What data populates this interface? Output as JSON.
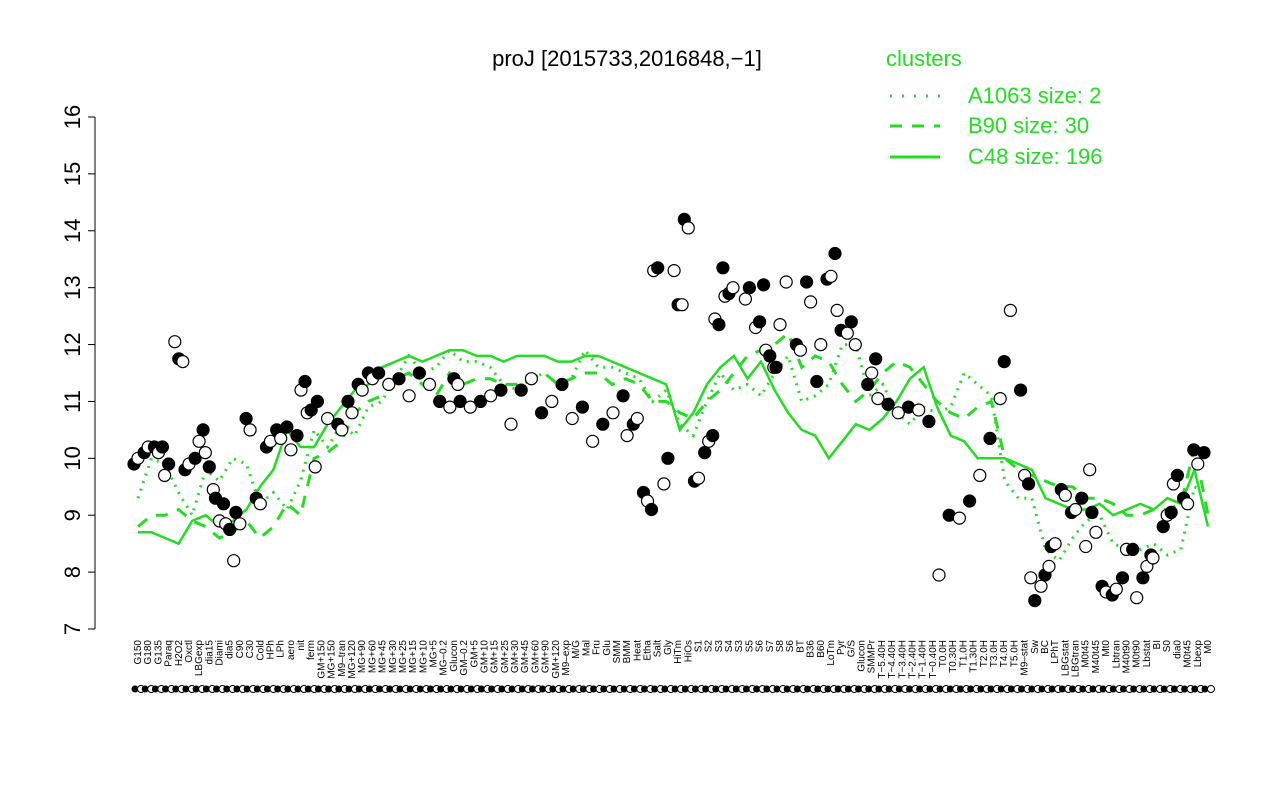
{
  "chart_data": {
    "type": "line",
    "title": "proJ [2015733,2016848,−1]",
    "xlabel": "",
    "ylabel": "",
    "ylim": [
      7,
      16
    ],
    "yticks": [
      7,
      8,
      9,
      10,
      11,
      12,
      13,
      14,
      15,
      16
    ],
    "grid": false,
    "legend_position": "top-right",
    "legend_title": "clusters",
    "line_color": "#22dd22",
    "series": [
      {
        "name": "A1063 size: 2",
        "style": "dotted",
        "values": [
          9.3,
          10.0,
          9.9,
          9.4,
          9.0,
          9.8,
          9.6,
          10.0,
          9.9,
          9.2,
          9.4,
          9.1,
          9.6,
          10.5,
          10.2,
          10.6,
          10.4,
          10.9,
          11.0,
          11.4,
          11.8,
          11.5,
          11.6,
          11.9,
          11.7,
          11.7,
          11.6,
          11.3,
          11.2,
          11.4,
          11.5,
          11.3,
          11.4,
          11.9,
          11.6,
          11.6,
          11.5,
          11.4,
          11.0,
          11.2,
          10.6,
          10.4,
          11.0,
          11.5,
          11.2,
          11.3,
          11.1,
          11.5,
          11.8,
          11.0,
          11.1,
          11.3,
          12.0,
          12.0,
          11.1,
          11.3,
          10.8,
          10.6,
          10.9,
          10.8,
          10.9,
          11.5,
          11.3,
          11.1,
          9.6,
          9.3,
          9.3,
          8.4,
          8.2,
          8.6,
          8.9,
          9.0,
          8.5,
          8.4,
          8.4,
          8.5,
          8.3,
          8.4,
          9.5,
          9.4
        ]
      },
      {
        "name": "B90 size: 30",
        "style": "dashed",
        "values": [
          8.8,
          9.0,
          9.0,
          9.1,
          8.9,
          8.8,
          8.6,
          8.7,
          8.9,
          8.6,
          8.8,
          9.2,
          9.0,
          10.0,
          10.1,
          10.3,
          10.8,
          11.0,
          11.1,
          11.4,
          11.5,
          11.3,
          11.1,
          11.5,
          11.3,
          11.4,
          11.4,
          11.3,
          11.3,
          11.4,
          11.5,
          11.3,
          11.4,
          11.5,
          11.5,
          11.3,
          11.4,
          11.3,
          11.0,
          11.0,
          10.8,
          10.7,
          11.0,
          11.2,
          11.5,
          11.8,
          11.9,
          12.0,
          12.2,
          11.6,
          11.8,
          11.7,
          11.3,
          11.0,
          11.2,
          11.5,
          11.7,
          11.6,
          11.3,
          11.0,
          10.8,
          10.7,
          10.9,
          11.0,
          10.0,
          9.8,
          9.7,
          9.6,
          9.5,
          9.5,
          9.3,
          9.3,
          9.2,
          9.0,
          9.0,
          9.1,
          9.1,
          9.2,
          10.2,
          9.0
        ]
      },
      {
        "name": "C48 size: 196",
        "style": "solid",
        "values": [
          8.7,
          8.7,
          8.6,
          8.5,
          8.9,
          9.0,
          8.8,
          8.9,
          9.1,
          9.5,
          9.8,
          10.5,
          10.2,
          10.2,
          10.6,
          10.9,
          11.2,
          11.3,
          11.6,
          11.7,
          11.8,
          11.7,
          11.8,
          11.9,
          11.9,
          11.8,
          11.8,
          11.7,
          11.8,
          11.8,
          11.8,
          11.7,
          11.7,
          11.8,
          11.8,
          11.7,
          11.6,
          11.5,
          11.4,
          11.3,
          10.5,
          10.8,
          11.3,
          11.6,
          11.8,
          11.4,
          11.7,
          11.2,
          10.8,
          10.5,
          10.4,
          10.0,
          10.3,
          10.6,
          10.5,
          10.7,
          11.0,
          11.4,
          11.6,
          10.9,
          10.4,
          10.3,
          10.0,
          10.0,
          10.0,
          9.9,
          9.8,
          9.3,
          9.2,
          9.1,
          9.1,
          9.2,
          9.0,
          9.1,
          9.2,
          9.1,
          9.3,
          9.2,
          9.8,
          8.8
        ]
      }
    ],
    "x_labels": [
      "G150",
      "G180",
      "G135",
      "Paraq",
      "H2O2",
      "Oxctl",
      "LBGexp",
      "dia15",
      "Diami",
      "dia5",
      "C90",
      "C30",
      "Cold",
      "HPh",
      "LPh",
      "aero",
      "nit",
      "ferm",
      "GM+150",
      "MG+150",
      "M9–tran",
      "MG+120",
      "MG+90",
      "MG+60",
      "MG+45",
      "MG+30",
      "MG+25",
      "MG+15",
      "MG+10",
      "MG+5",
      "MG–0.2",
      "Glucon",
      "GM–0.2",
      "GM+5",
      "GM+10",
      "GM+15",
      "GM+25",
      "GM+30",
      "GM+45",
      "GM+60",
      "GM+90",
      "GM+120",
      "M9–exp",
      "M/G",
      "Mal",
      "Fru",
      "Glu",
      "SMM",
      "BMM",
      "Heat",
      "Etha",
      "Salt",
      "Gly",
      "HiTm",
      "HiOs",
      "S1",
      "S2",
      "S3",
      "S4",
      "S3",
      "S5",
      "S6",
      "S7",
      "S8",
      "S6",
      "BT",
      "B36",
      "B60",
      "LoTm",
      "Pyr",
      "G/S",
      "Glucon",
      "SMMPr",
      "T−5.40H",
      "T−4.40H",
      "T−3.40H",
      "T−2.40H",
      "T−1.40H",
      "T−0.40H",
      "T0.0H",
      "T0.30H",
      "T1.0H",
      "T1.30H",
      "T2.0H",
      "T3.0H",
      "T4.0H",
      "T5.0H",
      "M9–stat",
      "Sw",
      "BC",
      "LPhT",
      "LBGstat",
      "LBGtran",
      "M0t45",
      "M40t45",
      "Mt0",
      "Lbtran",
      "M40t90",
      "M0t90",
      "Lbstat",
      "BI",
      "S0",
      "dia0",
      "M0t45",
      "Lbexp",
      "M0"
    ],
    "points": [
      {
        "x": "G150",
        "y": 9.9
      },
      {
        "x": "G150",
        "y": 10.0
      },
      {
        "x": "G180",
        "y": 10.1
      },
      {
        "x": "G180",
        "y": 10.2
      },
      {
        "x": "G135",
        "y": 10.2
      },
      {
        "x": "G135",
        "y": 10.1
      },
      {
        "x": "G135",
        "y": 10.2
      },
      {
        "x": "Paraq",
        "y": 9.7
      },
      {
        "x": "Paraq",
        "y": 9.9
      },
      {
        "x": "H2O2",
        "y": 12.05
      },
      {
        "x": "H2O2",
        "y": 11.75
      },
      {
        "x": "H2O2",
        "y": 11.7
      },
      {
        "x": "Oxctl",
        "y": 9.8
      },
      {
        "x": "Oxctl",
        "y": 9.9
      },
      {
        "x": "LBGexp",
        "y": 10.0
      },
      {
        "x": "LBGexp",
        "y": 10.3
      },
      {
        "x": "LBGexp",
        "y": 10.5
      },
      {
        "x": "dia15",
        "y": 10.1
      },
      {
        "x": "dia15",
        "y": 9.85
      },
      {
        "x": "dia15",
        "y": 9.45
      },
      {
        "x": "Diami",
        "y": 9.3
      },
      {
        "x": "Diami",
        "y": 8.9
      },
      {
        "x": "Diami",
        "y": 9.2
      },
      {
        "x": "dia5",
        "y": 8.85
      },
      {
        "x": "dia5",
        "y": 8.75
      },
      {
        "x": "dia5",
        "y": 8.2
      },
      {
        "x": "C90",
        "y": 9.05
      },
      {
        "x": "C90",
        "y": 8.85
      },
      {
        "x": "C30",
        "y": 10.7
      },
      {
        "x": "C30",
        "y": 10.5
      },
      {
        "x": "Cold",
        "y": 9.3
      },
      {
        "x": "Cold",
        "y": 9.2
      },
      {
        "x": "HPh",
        "y": 10.2
      },
      {
        "x": "HPh",
        "y": 10.3
      },
      {
        "x": "LPh",
        "y": 10.5
      },
      {
        "x": "LPh",
        "y": 10.35
      },
      {
        "x": "aero",
        "y": 10.55
      },
      {
        "x": "aero",
        "y": 10.15
      },
      {
        "x": "nit",
        "y": 10.4
      },
      {
        "x": "nit",
        "y": 11.2
      },
      {
        "x": "nit",
        "y": 11.35
      },
      {
        "x": "ferm",
        "y": 10.8
      },
      {
        "x": "ferm",
        "y": 10.85
      },
      {
        "x": "ferm",
        "y": 9.85
      },
      {
        "x": "GM+150",
        "y": 11.0
      },
      {
        "x": "MG+150",
        "y": 10.7
      },
      {
        "x": "M9–tran",
        "y": 10.6
      },
      {
        "x": "M9–tran",
        "y": 10.5
      },
      {
        "x": "MG+120",
        "y": 11.0
      },
      {
        "x": "MG+120",
        "y": 10.8
      },
      {
        "x": "MG+90",
        "y": 11.3
      },
      {
        "x": "MG+90",
        "y": 11.2
      },
      {
        "x": "MG+60",
        "y": 11.5
      },
      {
        "x": "MG+60",
        "y": 11.4
      },
      {
        "x": "MG+45",
        "y": 11.5
      },
      {
        "x": "MG+30",
        "y": 11.3
      },
      {
        "x": "MG+25",
        "y": 11.4
      },
      {
        "x": "MG+15",
        "y": 11.1
      },
      {
        "x": "MG+10",
        "y": 11.5
      },
      {
        "x": "MG+5",
        "y": 11.3
      },
      {
        "x": "MG–0.2",
        "y": 11.0
      },
      {
        "x": "Glucon",
        "y": 10.9
      },
      {
        "x": "GM–0.2",
        "y": 11.0
      },
      {
        "x": "GM+5",
        "y": 10.9
      },
      {
        "x": "GM+10",
        "y": 11.0
      },
      {
        "x": "GM+15",
        "y": 11.1
      },
      {
        "x": "GM+25",
        "y": 11.2
      },
      {
        "x": "GM+30",
        "y": 10.6
      },
      {
        "x": "GM+45",
        "y": 11.2
      },
      {
        "x": "GM+60",
        "y": 11.4
      },
      {
        "x": "GM+90",
        "y": 10.8
      },
      {
        "x": "GM+120",
        "y": 11.0
      },
      {
        "x": "M9–exp",
        "y": 11.3
      },
      {
        "x": "M/G",
        "y": 10.7
      },
      {
        "x": "Mal",
        "y": 10.9
      },
      {
        "x": "Fru",
        "y": 10.3
      },
      {
        "x": "Glu",
        "y": 10.6
      },
      {
        "x": "SMM",
        "y": 10.8
      },
      {
        "x": "BMM",
        "y": 11.1
      },
      {
        "x": "BMM",
        "y": 10.4
      },
      {
        "x": "Heat",
        "y": 10.6
      },
      {
        "x": "Heat",
        "y": 10.7
      },
      {
        "x": "Etha",
        "y": 9.4
      },
      {
        "x": "Etha",
        "y": 9.25
      },
      {
        "x": "Etha",
        "y": 9.1
      },
      {
        "x": "Salt",
        "y": 13.3
      },
      {
        "x": "Salt",
        "y": 13.35
      },
      {
        "x": "Gly",
        "y": 9.55
      },
      {
        "x": "Gly",
        "y": 10.0
      },
      {
        "x": "HiTm",
        "y": 13.3
      },
      {
        "x": "HiTm",
        "y": 12.7
      },
      {
        "x": "HiTm",
        "y": 12.7
      },
      {
        "x": "HiOs",
        "y": 14.2
      },
      {
        "x": "HiOs",
        "y": 14.05
      },
      {
        "x": "S1",
        "y": 9.6
      },
      {
        "x": "S1",
        "y": 9.65
      },
      {
        "x": "S2",
        "y": 10.1
      },
      {
        "x": "S2",
        "y": 10.3
      },
      {
        "x": "S2",
        "y": 10.4
      },
      {
        "x": "S3",
        "y": 12.45
      },
      {
        "x": "S3",
        "y": 12.35
      },
      {
        "x": "S4",
        "y": 12.85
      },
      {
        "x": "S4",
        "y": 12.9
      },
      {
        "x": "S4",
        "y": 13.0
      },
      {
        "x": "S3",
        "y": 13.35
      },
      {
        "x": "S5",
        "y": 12.8
      },
      {
        "x": "S5",
        "y": 13.0
      },
      {
        "x": "S6",
        "y": 12.3
      },
      {
        "x": "S6",
        "y": 12.4
      },
      {
        "x": "S7",
        "y": 11.9
      },
      {
        "x": "S7",
        "y": 11.8
      },
      {
        "x": "S7",
        "y": 11.6
      },
      {
        "x": "S8",
        "y": 11.6
      },
      {
        "x": "S8",
        "y": 12.35
      },
      {
        "x": "S6",
        "y": 13.05
      },
      {
        "x": "S6",
        "y": 13.1
      },
      {
        "x": "BT",
        "y": 12.0
      },
      {
        "x": "BT",
        "y": 11.9
      },
      {
        "x": "B36",
        "y": 13.1
      },
      {
        "x": "B36",
        "y": 12.75
      },
      {
        "x": "B60",
        "y": 11.35
      },
      {
        "x": "B60",
        "y": 12.0
      },
      {
        "x": "LoTm",
        "y": 13.15
      },
      {
        "x": "LoTm",
        "y": 13.2
      },
      {
        "x": "LoTm",
        "y": 13.6
      },
      {
        "x": "Pyr",
        "y": 12.6
      },
      {
        "x": "Pyr",
        "y": 12.25
      },
      {
        "x": "G/S",
        "y": 12.2
      },
      {
        "x": "G/S",
        "y": 12.4
      },
      {
        "x": "G/S",
        "y": 12.0
      },
      {
        "x": "Glucon",
        "y": 11.4
      },
      {
        "x": "Glucon",
        "y": 11.3
      },
      {
        "x": "SMMPr",
        "y": 11.3
      },
      {
        "x": "SMMPr",
        "y": 11.5
      },
      {
        "x": "SMMPr",
        "y": 11.75
      },
      {
        "x": "T−5.40H",
        "y": 11.05
      },
      {
        "x": "T−4.40H",
        "y": 10.95
      },
      {
        "x": "T−3.40H",
        "y": 10.8
      },
      {
        "x": "T−2.40H",
        "y": 10.9
      },
      {
        "x": "T−1.40H",
        "y": 10.85
      },
      {
        "x": "T−0.40H",
        "y": 10.65
      },
      {
        "x": "T0.0H",
        "y": 7.95
      },
      {
        "x": "T0.30H",
        "y": 9.0
      },
      {
        "x": "T1.0H",
        "y": 8.95
      },
      {
        "x": "T1.30H",
        "y": 9.25
      },
      {
        "x": "T2.0H",
        "y": 9.7
      },
      {
        "x": "T3.0H",
        "y": 10.35
      },
      {
        "x": "T4.0H",
        "y": 11.05
      },
      {
        "x": "T4.0H",
        "y": 11.7
      },
      {
        "x": "T5.0H",
        "y": 12.6
      },
      {
        "x": "M9–stat",
        "y": 11.2
      },
      {
        "x": "M9–stat",
        "y": 9.7
      },
      {
        "x": "M9–stat",
        "y": 9.55
      },
      {
        "x": "Sw",
        "y": 7.9
      },
      {
        "x": "Sw",
        "y": 7.5
      },
      {
        "x": "BC",
        "y": 7.75
      },
      {
        "x": "BC",
        "y": 7.95
      },
      {
        "x": "BC",
        "y": 8.1
      },
      {
        "x": "LPhT",
        "y": 8.45
      },
      {
        "x": "LPhT",
        "y": 8.5
      },
      {
        "x": "LBGstat",
        "y": 9.45
      },
      {
        "x": "LBGstat",
        "y": 9.35
      },
      {
        "x": "LBGtran",
        "y": 9.05
      },
      {
        "x": "LBGtran",
        "y": 9.1
      },
      {
        "x": "M0t45",
        "y": 9.3
      },
      {
        "x": "M0t45",
        "y": 8.45
      },
      {
        "x": "M40t45",
        "y": 9.05
      },
      {
        "x": "M40t45",
        "y": 8.7
      },
      {
        "x": "Mt0",
        "y": 7.75
      },
      {
        "x": "Mt0",
        "y": 7.65
      },
      {
        "x": "Lbtran",
        "y": 7.6
      },
      {
        "x": "Lbtran",
        "y": 7.7
      },
      {
        "x": "M40t90",
        "y": 7.9
      },
      {
        "x": "M40t90",
        "y": 8.4
      },
      {
        "x": "M0t90",
        "y": 8.4
      },
      {
        "x": "M0t90",
        "y": 7.55
      },
      {
        "x": "Lbstat",
        "y": 7.9
      },
      {
        "x": "Lbstat",
        "y": 8.1
      },
      {
        "x": "Lbstat",
        "y": 8.3
      },
      {
        "x": "BI",
        "y": 8.25
      },
      {
        "x": "S0",
        "y": 8.8
      },
      {
        "x": "S0",
        "y": 9.0
      },
      {
        "x": "S0",
        "y": 9.05
      },
      {
        "x": "dia0",
        "y": 9.55
      },
      {
        "x": "dia0",
        "y": 9.7
      },
      {
        "x": "M0t45",
        "y": 9.8
      },
      {
        "x": "M0t45",
        "y": 9.3
      },
      {
        "x": "M0t45",
        "y": 9.2
      },
      {
        "x": "Lbexp",
        "y": 10.15
      },
      {
        "x": "Lbexp",
        "y": 9.9
      },
      {
        "x": "M0",
        "y": 10.1
      }
    ]
  }
}
